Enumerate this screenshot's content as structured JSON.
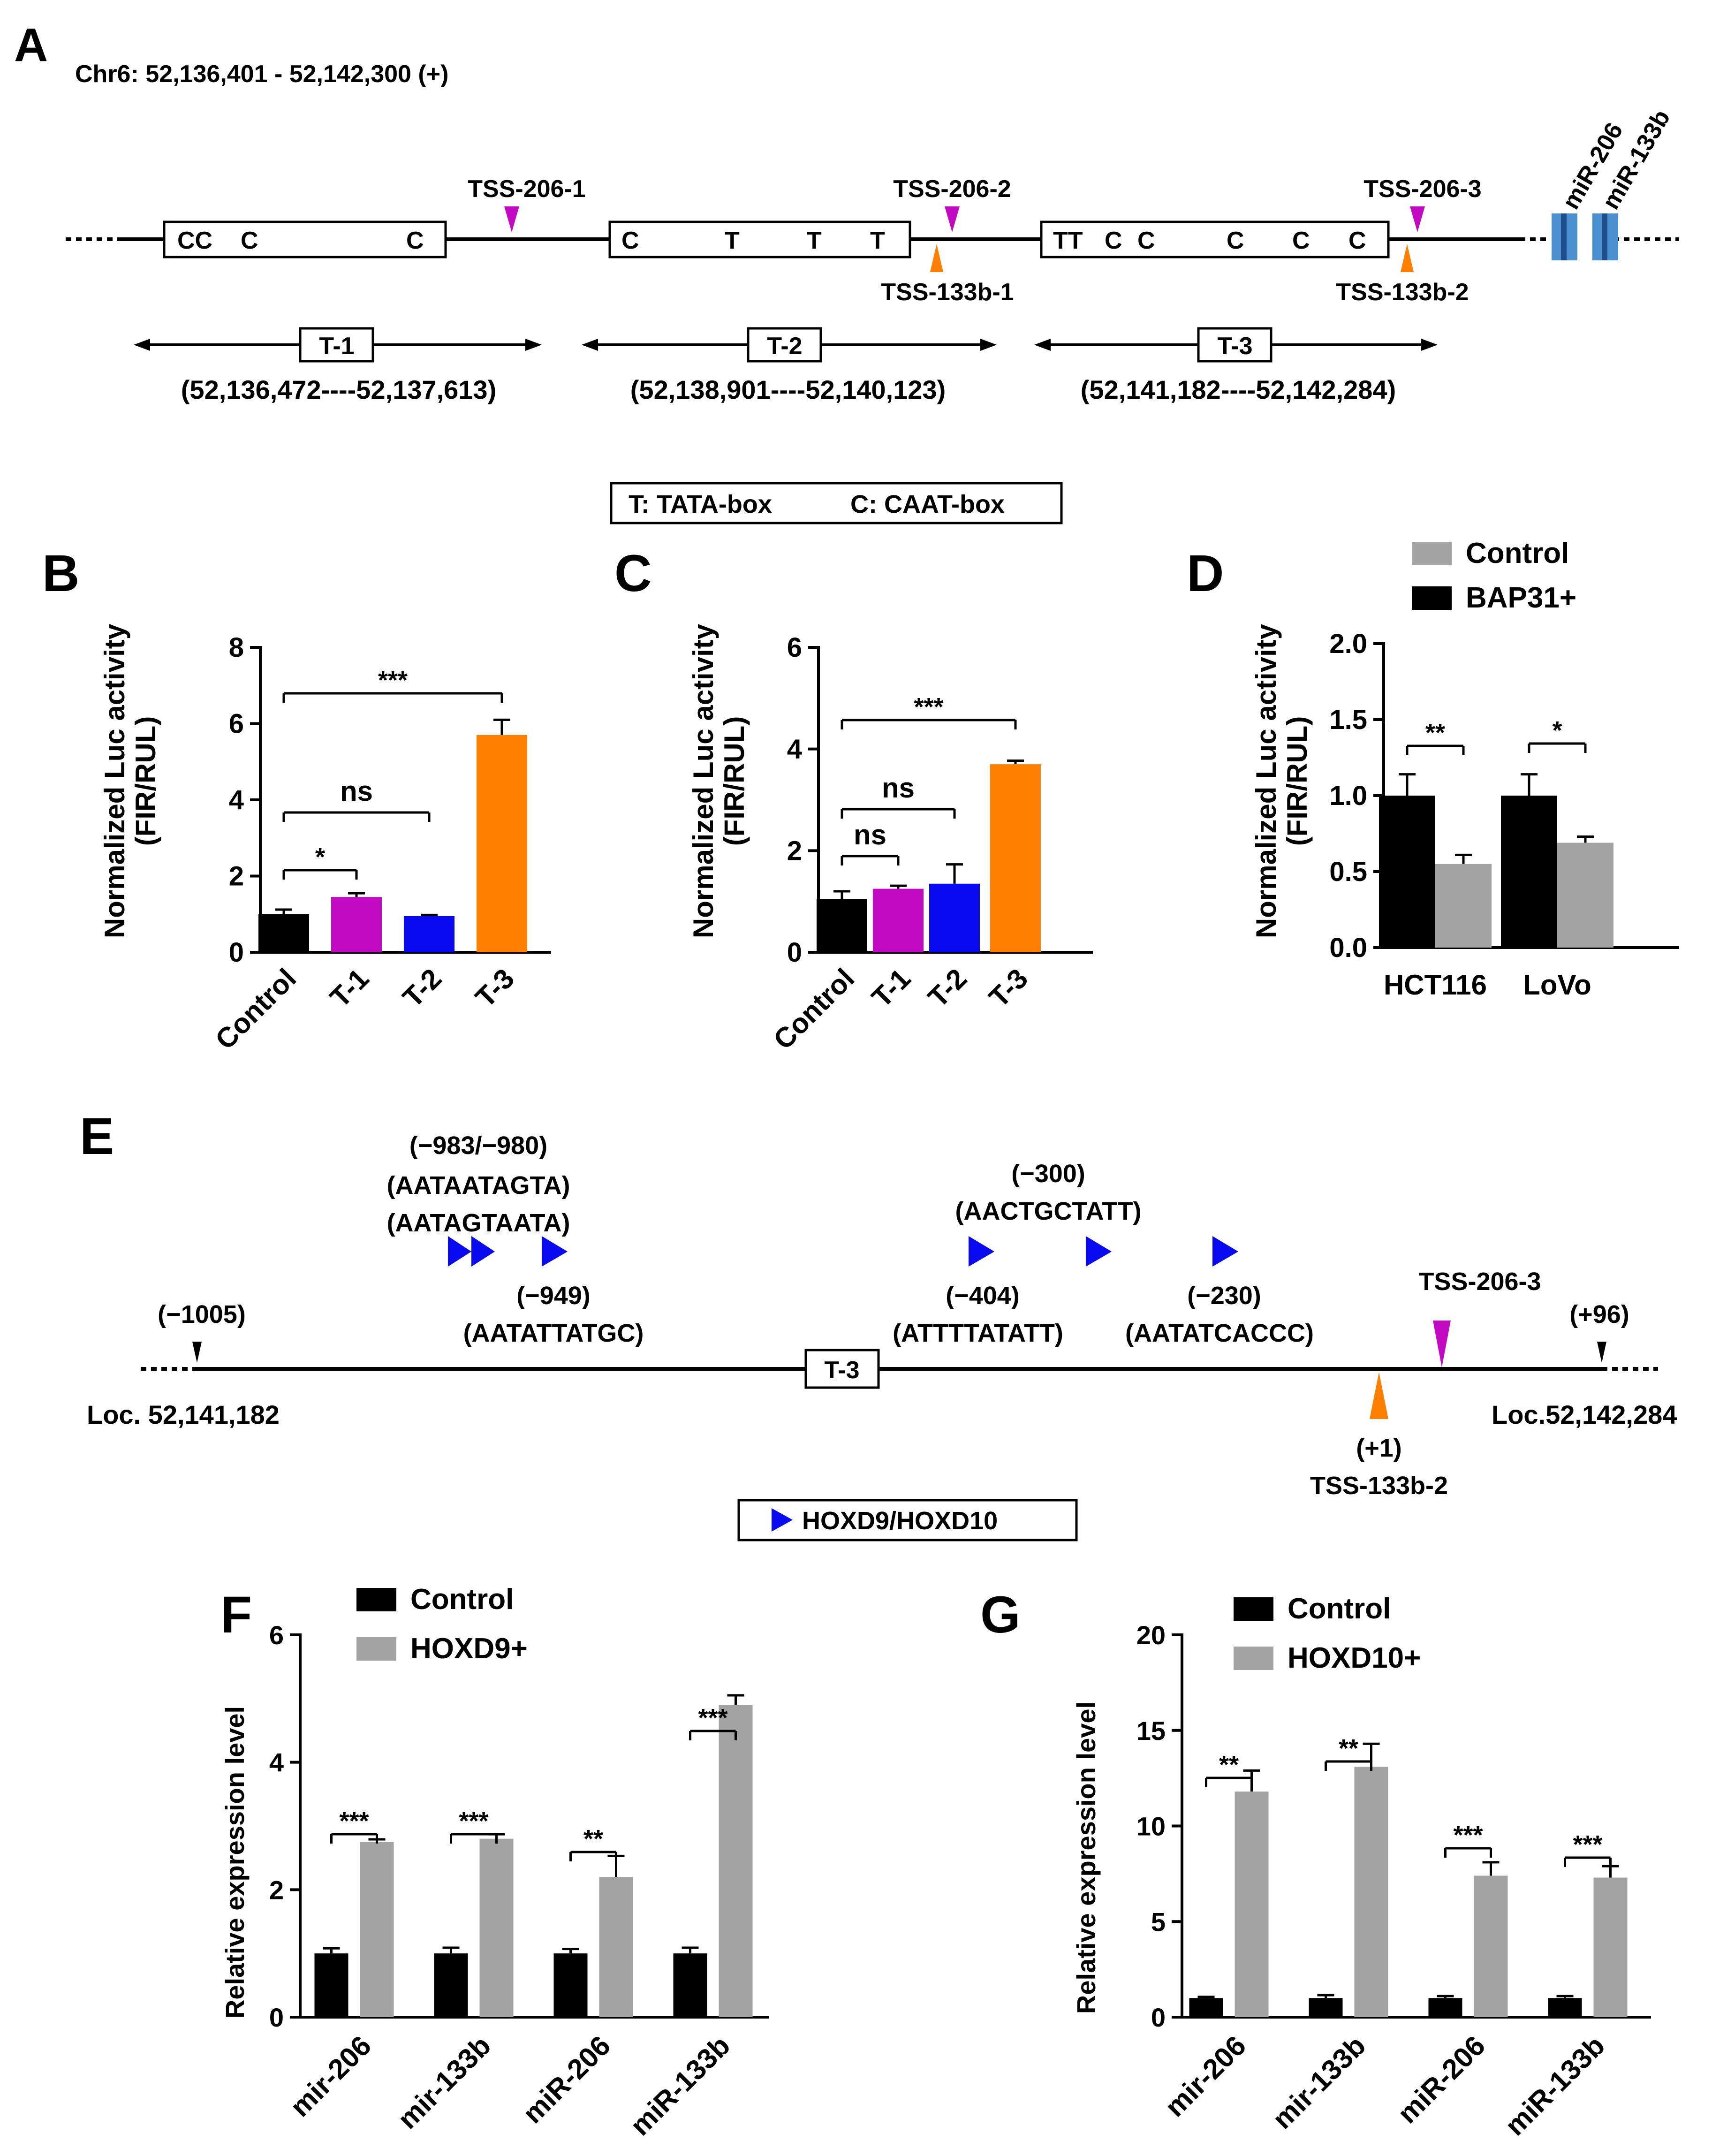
{
  "colors": {
    "black": "#000000",
    "magenta": "#C20AC2",
    "blue": "#0A0AF0",
    "orange": "#FF8000",
    "gray": "#A3A3A3",
    "mirblue": "#4A90D0",
    "mirdark": "#1F4E8C"
  },
  "panel_a": {
    "letter": "A",
    "coord": "Chr6: 52,136,401 - 52,142,300 (+)",
    "boxes": [
      [
        "CC",
        "C",
        "C"
      ],
      [
        "C",
        "T",
        "T",
        "T"
      ],
      [
        "TT",
        "C",
        "C",
        "C",
        "C",
        "C"
      ]
    ],
    "tss": {
      "t206_1": "TSS-206-1",
      "t206_2": "TSS-206-2",
      "t206_3": "TSS-206-3",
      "t133_1": "TSS-133b-1",
      "t133_2": "TSS-133b-2"
    },
    "mirnas": [
      "miR-206",
      "miR-133b"
    ],
    "regions": [
      {
        "name": "T-1",
        "range": "(52,136,472----52,137,613)"
      },
      {
        "name": "T-2",
        "range": "(52,138,901----52,140,123)"
      },
      {
        "name": "T-3",
        "range": "(52,141,182----52,142,284)"
      }
    ],
    "legend": {
      "t": "T: TATA-box",
      "c": "C: CAAT-box"
    }
  },
  "chart_data": [
    {
      "panel": "B",
      "type": "bar",
      "categories": [
        "Control",
        "T-1",
        "T-2",
        "T-3"
      ],
      "values": [
        1.0,
        1.45,
        0.95,
        5.7
      ],
      "errors": [
        0.12,
        0.1,
        0.03,
        0.4
      ],
      "ylabel": "Normalized Luc activity (FIR/RUL)",
      "ylim": [
        0,
        8
      ],
      "yticks": [
        "0",
        "2",
        "4",
        "6",
        "8"
      ],
      "bar_colors": [
        "#000000",
        "#C20AC2",
        "#0A0AF0",
        "#FF8000"
      ],
      "significance": [
        "*",
        "ns",
        "***"
      ]
    },
    {
      "panel": "C",
      "type": "bar",
      "categories": [
        "Control",
        "T-1",
        "T-2",
        "T-3"
      ],
      "values": [
        1.05,
        1.25,
        1.35,
        3.7
      ],
      "errors": [
        0.15,
        0.06,
        0.38,
        0.07
      ],
      "ylabel": "Normalized Luc activity (FIR/RUL)",
      "ylim": [
        0,
        6
      ],
      "yticks": [
        "0",
        "2",
        "4",
        "6"
      ],
      "bar_colors": [
        "#000000",
        "#C20AC2",
        "#0A0AF0",
        "#FF8000"
      ],
      "significance": [
        "ns",
        "ns",
        "***"
      ]
    },
    {
      "panel": "D",
      "type": "bar",
      "categories": [
        "HCT116",
        "LoVo"
      ],
      "series": [
        {
          "name": "Control",
          "values": [
            1.0,
            1.0
          ],
          "errors": [
            0.14,
            0.14
          ]
        },
        {
          "name": "BAP31+",
          "values": [
            0.55,
            0.69
          ],
          "errors": [
            0.06,
            0.04
          ]
        }
      ],
      "legend_labels": [
        "Control",
        "BAP31+"
      ],
      "ylabel": "Normalized Luc activity (FIR/RUL)",
      "ylim": [
        0,
        2.0
      ],
      "yticks": [
        "0.0",
        "0.5",
        "1.0",
        "1.5",
        "2.0"
      ],
      "significance": [
        "**",
        "*"
      ]
    },
    {
      "panel": "F",
      "type": "bar",
      "categories": [
        "mir-206",
        "mir-133b",
        "miR-206",
        "miR-133b"
      ],
      "series": [
        {
          "name": "Control",
          "values": [
            1.0,
            1.0,
            1.0,
            1.0
          ],
          "errors": [
            0.08,
            0.09,
            0.07,
            0.09
          ]
        },
        {
          "name": "HOXD9+",
          "values": [
            2.75,
            2.8,
            2.2,
            4.9
          ],
          "errors": [
            0.04,
            0.07,
            0.33,
            0.15
          ]
        }
      ],
      "legend_labels": [
        "Control",
        "HOXD9+"
      ],
      "ylabel": "Relative expression level",
      "ylim": [
        0,
        6
      ],
      "yticks": [
        "0",
        "2",
        "4",
        "6"
      ],
      "significance": [
        "***",
        "***",
        "**",
        "***"
      ]
    },
    {
      "panel": "G",
      "type": "bar",
      "categories": [
        "mir-206",
        "mir-133b",
        "miR-206",
        "miR-133b"
      ],
      "series": [
        {
          "name": "Control",
          "values": [
            1.0,
            1.0,
            1.0,
            1.0
          ],
          "errors": [
            0.06,
            0.15,
            0.1,
            0.1
          ]
        },
        {
          "name": "HOXD10+",
          "values": [
            11.8,
            13.1,
            7.4,
            7.3
          ],
          "errors": [
            1.1,
            1.2,
            0.7,
            0.6
          ]
        }
      ],
      "legend_labels": [
        "Control",
        "HOXD10+"
      ],
      "ylabel": "Relative expression level",
      "ylim": [
        0,
        20
      ],
      "yticks": [
        "0",
        "5",
        "10",
        "15",
        "20"
      ],
      "significance": [
        "**",
        "**",
        "***",
        "***"
      ]
    }
  ],
  "panel_letters": {
    "b": "B",
    "c": "C",
    "d": "D",
    "e": "E",
    "f": "F",
    "g": "G"
  },
  "panel_e": {
    "sites": {
      "s983": "(−983/−980)",
      "s983a": "(AATAATAGTA)",
      "s983b": "(AATAGTAATA)",
      "s949": "(−949)",
      "s949seq": "(AATATTATGC)",
      "s300": "(−300)",
      "s300seq": "(AACTGCTATT)",
      "s404": "(−404)",
      "s404seq": "(ATTTTATATT)",
      "s230": "(−230)",
      "s230seq": "(AATATCACCC)"
    },
    "left_pos": "(−1005)",
    "right_pos": "(+96)",
    "left_loc": "Loc. 52,141,182",
    "right_loc": "Loc.52,142,284",
    "region": "T-3",
    "tss206": "TSS-206-3",
    "plus1": "(+1)",
    "tss133": "TSS-133b-2",
    "legend": "HOXD9/HOXD10"
  }
}
